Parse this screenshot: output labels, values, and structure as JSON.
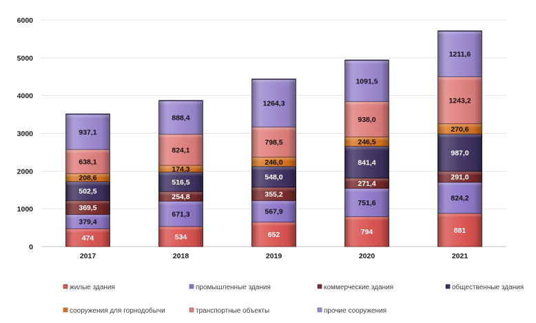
{
  "chart_data": {
    "type": "bar",
    "stacked": true,
    "title": "",
    "xlabel": "",
    "ylabel": "",
    "ylim": [
      0,
      6000
    ],
    "yticks": [
      "0",
      "1000",
      "2000",
      "3000",
      "4000",
      "5000",
      "6000"
    ],
    "ytick_values": [
      0,
      1000,
      2000,
      3000,
      4000,
      5000,
      6000
    ],
    "grid": true,
    "legend_position": "bottom",
    "categories": [
      "2017",
      "2018",
      "2019",
      "2020",
      "2021"
    ],
    "series": [
      {
        "name": "жилые здания",
        "color": "#d9534f",
        "values": [
          474,
          534,
          652,
          794,
          881
        ],
        "labels": [
          "474",
          "534",
          "652",
          "794",
          "881"
        ]
      },
      {
        "name": "промышленные здания",
        "color": "#8e78c8",
        "values": [
          379.4,
          671.3,
          567.9,
          751.6,
          824.2
        ],
        "labels": [
          "379,4",
          "671,3",
          "567,9",
          "751,6",
          "824,2"
        ]
      },
      {
        "name": "коммерческие здания",
        "color": "#7a2a2c",
        "values": [
          369.5,
          254.8,
          355.2,
          271.4,
          291.0
        ],
        "labels": [
          "369,5",
          "254,8",
          "355,2",
          "271,4",
          "291,0"
        ]
      },
      {
        "name": "общественные здания",
        "color": "#3d3160",
        "values": [
          502.5,
          516.5,
          548.0,
          841.4,
          987.0
        ],
        "labels": [
          "502,5",
          "516,5",
          "548,0",
          "841,4",
          "987,0"
        ]
      },
      {
        "name": "сооружения для горнодобычи",
        "color": "#d8731f",
        "values": [
          208.6,
          174.3,
          246.0,
          246.5,
          270.6
        ],
        "labels": [
          "208,6",
          "174,3",
          "246,0",
          "246,5",
          "270,6"
        ]
      },
      {
        "name": "транспортные объекты",
        "color": "#e07f7d",
        "values": [
          638.1,
          824.1,
          798.5,
          938.0,
          1243.2
        ],
        "labels": [
          "638,1",
          "824,1",
          "798,5",
          "938,0",
          "1243,2"
        ]
      },
      {
        "name": "прочие сооружения",
        "color": "#9b88cf",
        "values": [
          937.1,
          888.4,
          1264.3,
          1091.5,
          1211.6
        ],
        "labels": [
          "937,1",
          "888,4",
          "1264,3",
          "1091,5",
          "1211,6"
        ]
      }
    ]
  }
}
